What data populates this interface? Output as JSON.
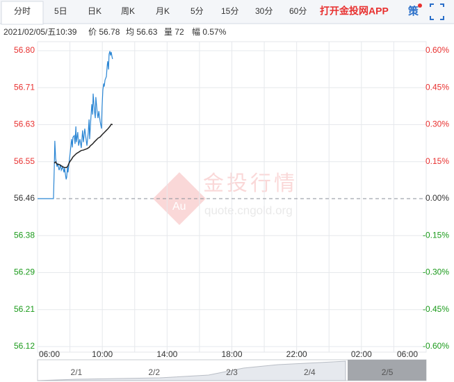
{
  "tabs": [
    "分时",
    "5日",
    "日K",
    "周K",
    "月K",
    "5分",
    "15分",
    "30分",
    "60分"
  ],
  "app_link": "打开金投网APP",
  "strategy": "策",
  "info": {
    "time": "2021/02/05/五10:39",
    "price": "价 56.78",
    "avg": "均 56.63",
    "volume": "量 72",
    "change": "幅 0.57%"
  },
  "watermark": {
    "logo": "Au",
    "name": "金投行情",
    "url": "quote.cngold.org"
  },
  "navigator": {
    "labels": [
      "2/1",
      "2/2",
      "2/3",
      "2/4",
      "2/5"
    ]
  },
  "chart_data": {
    "type": "line",
    "up_color": "#e8302f",
    "down_color": "#1a9a1a",
    "xlim": [
      0,
      1440
    ],
    "xticks": [
      {
        "value": 0,
        "label": "06:00"
      },
      {
        "value": 240,
        "label": "10:00"
      },
      {
        "value": 480,
        "label": "14:00"
      },
      {
        "value": 720,
        "label": "18:00"
      },
      {
        "value": 960,
        "label": "22:00"
      },
      {
        "value": 1200,
        "label": "02:00"
      },
      {
        "value": 1440,
        "label": "06:00"
      }
    ],
    "ylim": [
      56.123,
      56.799
    ],
    "yticks": [
      {
        "value": 56.799,
        "label": "56.80"
      },
      {
        "value": 56.7145,
        "label": "56.71"
      },
      {
        "value": 56.63,
        "label": "56.63"
      },
      {
        "value": 56.5455,
        "label": "56.55"
      },
      {
        "value": 56.461,
        "label": "56.46"
      },
      {
        "value": 56.3765,
        "label": "56.38"
      },
      {
        "value": 56.292,
        "label": "56.29"
      },
      {
        "value": 56.2075,
        "label": "56.21"
      },
      {
        "value": 56.123,
        "label": "56.12"
      }
    ],
    "y2lim": [
      -0.6,
      0.6
    ],
    "y2ticks": [
      {
        "value": 0.6,
        "label": "0.60%"
      },
      {
        "value": 0.45,
        "label": "0.45%"
      },
      {
        "value": 0.3,
        "label": "0.30%"
      },
      {
        "value": 0.15,
        "label": "0.15%"
      },
      {
        "value": 0,
        "label": "0.00%"
      },
      {
        "value": -0.15,
        "label": "-0.15%"
      },
      {
        "value": -0.3,
        "label": "-0.30%"
      },
      {
        "value": -0.45,
        "label": "-0.45%"
      },
      {
        "value": -0.6,
        "label": "-0.60%"
      }
    ],
    "grid": true,
    "series": [
      {
        "color": "#2b86d4",
        "x": [
          0,
          59,
          62,
          64,
          67,
          72,
          75,
          80,
          85,
          88,
          93,
          98,
          100,
          106,
          108,
          111,
          113,
          118,
          121,
          126,
          129,
          131,
          136,
          139,
          142,
          144,
          149,
          152,
          157,
          162,
          167,
          170,
          175,
          178,
          183,
          188,
          191,
          193,
          196,
          201,
          204,
          206,
          211,
          214,
          216,
          221,
          224,
          227,
          232,
          237,
          239,
          242,
          245,
          247,
          250,
          255,
          258,
          260,
          263,
          265,
          268,
          270,
          273,
          276,
          278
        ],
        "values": [
          56.461,
          56.461,
          56.531,
          56.593,
          56.553,
          56.534,
          56.54,
          56.526,
          56.539,
          56.526,
          56.534,
          56.521,
          56.531,
          56.505,
          56.51,
          56.534,
          56.521,
          56.55,
          56.566,
          56.597,
          56.578,
          56.601,
          56.605,
          56.586,
          56.626,
          56.59,
          56.613,
          56.582,
          56.597,
          56.577,
          56.617,
          56.59,
          56.621,
          56.605,
          56.582,
          56.613,
          56.642,
          56.597,
          56.629,
          56.677,
          56.653,
          56.701,
          56.661,
          56.645,
          56.693,
          56.658,
          56.645,
          56.661,
          56.637,
          56.621,
          56.669,
          56.709,
          56.724,
          56.717,
          56.732,
          56.74,
          56.764,
          56.775,
          56.756,
          56.791,
          56.798,
          56.788,
          56.796,
          56.785,
          56.78
        ]
      },
      {
        "color": "#222222",
        "x": [
          62,
          67,
          72,
          80,
          88,
          93,
          100,
          106,
          111,
          118,
          126,
          131,
          139,
          144,
          152,
          157,
          162,
          170,
          178,
          183,
          191,
          196,
          204,
          211,
          216,
          224,
          232,
          239,
          247,
          255,
          260,
          268,
          273,
          278
        ],
        "values": [
          56.542,
          56.545,
          56.54,
          56.539,
          56.536,
          56.534,
          56.532,
          56.532,
          56.534,
          56.544,
          56.551,
          56.556,
          56.561,
          56.564,
          56.567,
          56.569,
          56.571,
          56.572,
          56.574,
          56.575,
          56.578,
          56.582,
          56.586,
          56.591,
          56.594,
          56.599,
          56.602,
          56.607,
          56.612,
          56.617,
          56.62,
          56.626,
          56.631,
          56.63
        ]
      }
    ]
  }
}
